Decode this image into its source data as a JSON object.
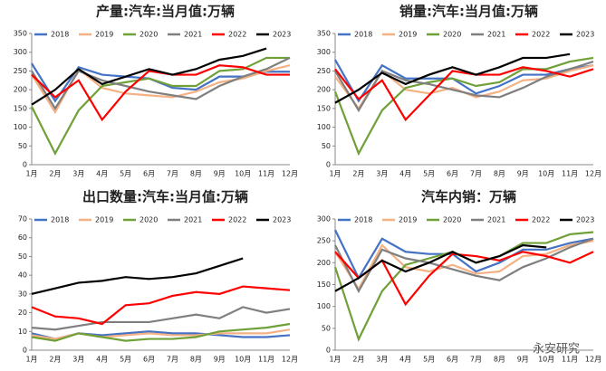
{
  "chart_data": [
    {
      "type": "line",
      "title": "产量:汽车:当月值:万辆",
      "categories": [
        "1月",
        "2月",
        "3月",
        "4月",
        "5月",
        "6月",
        "7月",
        "8月",
        "9月",
        "10月",
        "11月",
        "12月"
      ],
      "ylim": [
        0,
        350
      ],
      "yticks": [
        0,
        50,
        100,
        150,
        200,
        250,
        300,
        350
      ],
      "series": [
        {
          "name": "2018",
          "color": "#4472c4",
          "values": [
            270,
            170,
            260,
            240,
            235,
            230,
            205,
            200,
            235,
            235,
            248,
            248
          ]
        },
        {
          "name": "2019",
          "color": "#f4b183",
          "values": [
            240,
            140,
            255,
            205,
            190,
            185,
            180,
            195,
            220,
            230,
            250,
            265
          ]
        },
        {
          "name": "2020",
          "color": "#70a038",
          "values": [
            155,
            30,
            145,
            210,
            220,
            230,
            210,
            210,
            250,
            255,
            285,
            285
          ]
        },
        {
          "name": "2021",
          "color": "#7f7f7f",
          "values": [
            250,
            150,
            250,
            225,
            210,
            195,
            185,
            175,
            210,
            235,
            255,
            285
          ]
        },
        {
          "name": "2022",
          "color": "#ff0000",
          "values": [
            240,
            180,
            225,
            120,
            195,
            250,
            240,
            240,
            265,
            260,
            240,
            240
          ]
        },
        {
          "name": "2023",
          "color": "#000000",
          "values": [
            160,
            200,
            255,
            215,
            235,
            255,
            240,
            255,
            280,
            290,
            310,
            null
          ]
        }
      ]
    },
    {
      "type": "line",
      "title": "销量:汽车:当月值:万辆",
      "categories": [
        "1月",
        "2月",
        "3月",
        "4月",
        "5月",
        "6月",
        "7月",
        "8月",
        "9月",
        "10月",
        "11月",
        "12月"
      ],
      "ylim": [
        0,
        350
      ],
      "yticks": [
        0,
        50,
        100,
        150,
        200,
        250,
        300,
        350
      ],
      "series": [
        {
          "name": "2018",
          "color": "#4472c4",
          "values": [
            280,
            170,
            265,
            230,
            230,
            230,
            190,
            210,
            240,
            240,
            255,
            265
          ]
        },
        {
          "name": "2019",
          "color": "#f4b183",
          "values": [
            235,
            150,
            250,
            200,
            190,
            205,
            180,
            195,
            225,
            230,
            250,
            265
          ]
        },
        {
          "name": "2020",
          "color": "#70a038",
          "values": [
            195,
            30,
            145,
            205,
            220,
            230,
            210,
            220,
            255,
            255,
            275,
            285
          ]
        },
        {
          "name": "2021",
          "color": "#7f7f7f",
          "values": [
            250,
            145,
            250,
            225,
            215,
            200,
            185,
            180,
            205,
            235,
            255,
            275
          ]
        },
        {
          "name": "2022",
          "color": "#ff0000",
          "values": [
            255,
            175,
            225,
            120,
            185,
            250,
            240,
            240,
            260,
            250,
            235,
            255
          ]
        },
        {
          "name": "2023",
          "color": "#000000",
          "values": [
            165,
            200,
            245,
            215,
            240,
            260,
            240,
            260,
            285,
            285,
            295,
            null
          ]
        }
      ]
    },
    {
      "type": "line",
      "title": "出口数量:汽车:当月值:万辆",
      "categories": [
        "1月",
        "2月",
        "3月",
        "4月",
        "5月",
        "6月",
        "7月",
        "8月",
        "9月",
        "10月",
        "11月",
        "12月"
      ],
      "ylim": [
        0,
        70
      ],
      "yticks": [
        0,
        10,
        20,
        30,
        40,
        50,
        60,
        70
      ],
      "series": [
        {
          "name": "2018",
          "color": "#4472c4",
          "values": [
            9,
            6,
            9,
            8,
            9,
            10,
            9,
            9,
            8,
            7,
            7,
            8
          ]
        },
        {
          "name": "2019",
          "color": "#f4b183",
          "values": [
            8,
            6,
            9,
            7,
            8,
            9,
            8,
            8,
            9,
            9,
            9,
            11
          ]
        },
        {
          "name": "2020",
          "color": "#70a038",
          "values": [
            7,
            5,
            9,
            7,
            5,
            6,
            6,
            7,
            10,
            11,
            12,
            14
          ]
        },
        {
          "name": "2021",
          "color": "#7f7f7f",
          "values": [
            12,
            11,
            13,
            15,
            15,
            15,
            17,
            19,
            17,
            23,
            20,
            22
          ]
        },
        {
          "name": "2022",
          "color": "#ff0000",
          "values": [
            23,
            18,
            17,
            14,
            24,
            25,
            29,
            31,
            30,
            34,
            33,
            32
          ]
        },
        {
          "name": "2023",
          "color": "#000000",
          "values": [
            30,
            33,
            36,
            37,
            39,
            38,
            39,
            41,
            45,
            49,
            null,
            null
          ]
        }
      ]
    },
    {
      "type": "line",
      "title": "汽车内销：万辆",
      "categories": [
        "1月",
        "2月",
        "3月",
        "4月",
        "5月",
        "6月",
        "7月",
        "8月",
        "9月",
        "10月",
        "11月",
        "12月"
      ],
      "ylim": [
        0,
        300
      ],
      "yticks": [
        0,
        50,
        100,
        150,
        200,
        250,
        300
      ],
      "series": [
        {
          "name": "2018",
          "color": "#4472c4",
          "values": [
            275,
            165,
            255,
            225,
            220,
            220,
            180,
            200,
            230,
            230,
            245,
            255
          ]
        },
        {
          "name": "2019",
          "color": "#f4b183",
          "values": [
            225,
            140,
            240,
            190,
            180,
            195,
            175,
            180,
            215,
            220,
            240,
            250
          ]
        },
        {
          "name": "2020",
          "color": "#70a038",
          "values": [
            190,
            25,
            135,
            195,
            210,
            225,
            200,
            215,
            245,
            245,
            265,
            270
          ]
        },
        {
          "name": "2021",
          "color": "#7f7f7f",
          "values": [
            240,
            135,
            230,
            210,
            200,
            185,
            170,
            160,
            190,
            210,
            235,
            255
          ]
        },
        {
          "name": "2022",
          "color": "#ff0000",
          "values": [
            225,
            165,
            205,
            105,
            170,
            220,
            215,
            205,
            225,
            215,
            200,
            225
          ]
        },
        {
          "name": "2023",
          "color": "#000000",
          "values": [
            135,
            165,
            205,
            180,
            200,
            225,
            200,
            215,
            240,
            235,
            null,
            null
          ]
        }
      ]
    }
  ],
  "watermark": "永安研究"
}
